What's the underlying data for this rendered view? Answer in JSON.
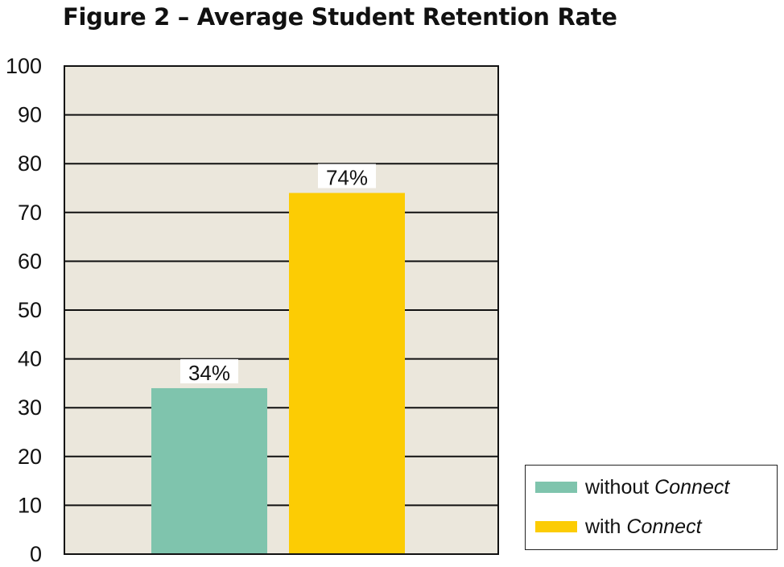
{
  "chart_data": {
    "type": "bar",
    "title": "Figure 2 – Average Student Retention Rate",
    "categories": [
      "without Connect",
      "with Connect"
    ],
    "values": [
      34,
      74
    ],
    "data_labels": [
      "34%",
      "74%"
    ],
    "colors": [
      "#7fc4ad",
      "#fccc04"
    ],
    "ylim": [
      0,
      100
    ],
    "yticks": [
      0,
      10,
      20,
      30,
      40,
      50,
      60,
      70,
      80,
      90,
      100
    ],
    "xlabel": "",
    "ylabel": "",
    "grid": true,
    "legend_position": "bottom-right",
    "plot_background": "#ebe7dc",
    "legend": [
      {
        "prefix": "without ",
        "emphasis": "Connect"
      },
      {
        "prefix": "with ",
        "emphasis": "Connect"
      }
    ]
  }
}
